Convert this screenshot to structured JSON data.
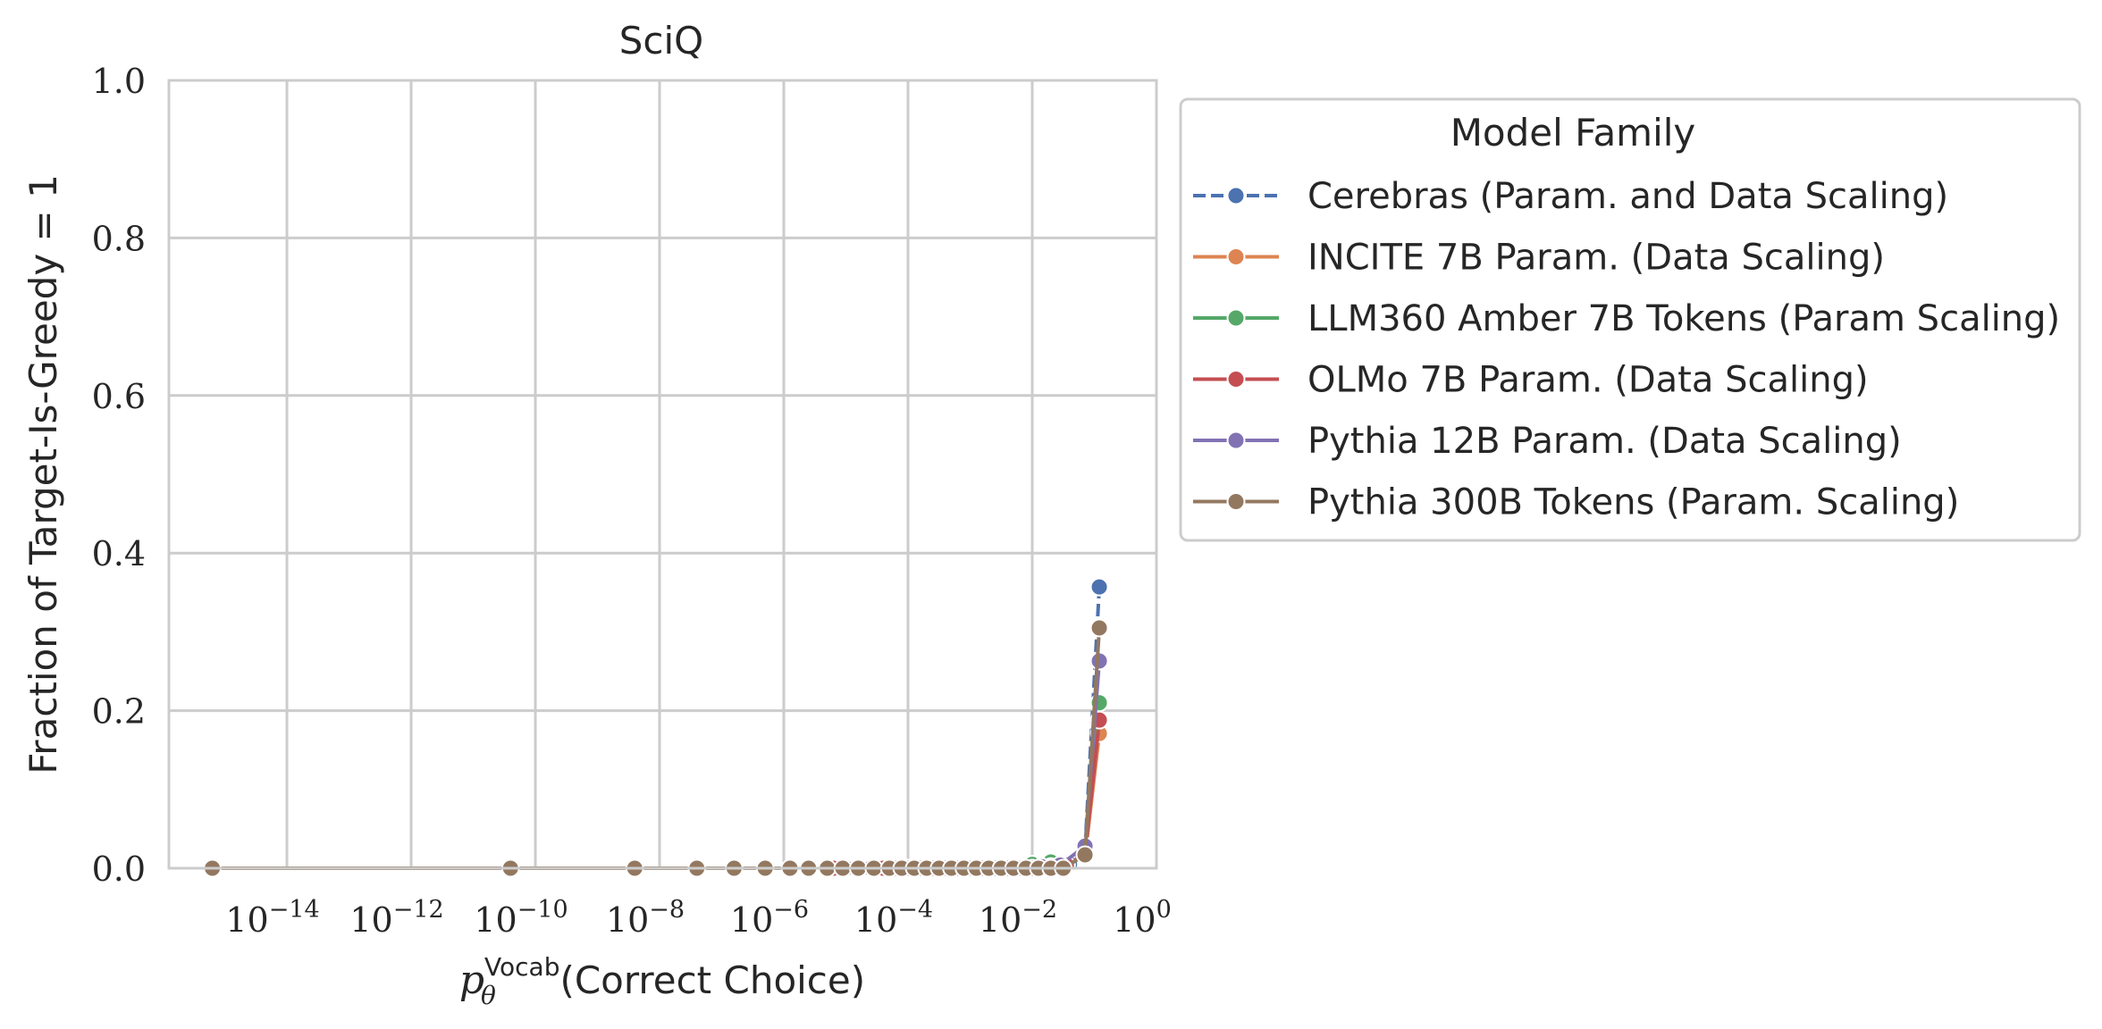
{
  "chart_data": {
    "type": "line",
    "title": "SciQ",
    "xlabel_main": "p",
    "xlabel_sub": "θ",
    "xlabel_sup": "Vocab",
    "xlabel_rest": "(Correct Choice)",
    "ylabel": "Fraction of Target-Is-Greedy = 1",
    "xscale": "log",
    "xlim_exp": [
      -15.9,
      0
    ],
    "ylim": [
      0.0,
      1.0
    ],
    "x_ticks": [
      {
        "exp": -14,
        "base": "10",
        "sup": "−14"
      },
      {
        "exp": -12,
        "base": "10",
        "sup": "−12"
      },
      {
        "exp": -10,
        "base": "10",
        "sup": "−10"
      },
      {
        "exp": -8,
        "base": "10",
        "sup": "−8"
      },
      {
        "exp": -6,
        "base": "10",
        "sup": "−6"
      },
      {
        "exp": -4,
        "base": "10",
        "sup": "−4"
      },
      {
        "exp": -2,
        "base": "10",
        "sup": "−2"
      },
      {
        "exp": 0,
        "base": "10",
        "sup": "0"
      }
    ],
    "y_ticks": [
      {
        "value": 0.0,
        "label": "0.0"
      },
      {
        "value": 0.2,
        "label": "0.2"
      },
      {
        "value": 0.4,
        "label": "0.4"
      },
      {
        "value": 0.6,
        "label": "0.6"
      },
      {
        "value": 0.8,
        "label": "0.8"
      },
      {
        "value": 1.0,
        "label": "1.0"
      }
    ],
    "grid": true,
    "legend": {
      "title": "Model Family",
      "placement": "outside-right-top"
    },
    "series": [
      {
        "name": "Cerebras (Param. and Data Scaling)",
        "color": "#4c72b0",
        "dashed": true,
        "x_exp": [
          -4.2,
          -3.9,
          -3.6,
          -3.3,
          -3.0,
          -2.7,
          -2.4,
          -2.1,
          -1.8,
          -1.6,
          -1.4,
          -1.15,
          -0.92
        ],
        "y": [
          0.0,
          0.0,
          0.0,
          0.0,
          0.0,
          0.0,
          0.0,
          0.0,
          0.002,
          0.003,
          0.005,
          0.025,
          0.357
        ]
      },
      {
        "name": "INCITE 7B Param. (Data Scaling)",
        "color": "#dd8452",
        "dashed": false,
        "x_exp": [
          -5.6,
          -5.3,
          -5.0,
          -4.6,
          -4.2,
          -3.8,
          -3.4,
          -3.0,
          -2.6,
          -2.2,
          -1.8,
          -1.5,
          -1.15,
          -0.92
        ],
        "y": [
          0.0,
          0.0,
          0.0,
          0.0,
          0.0,
          0.0,
          0.0,
          0.0,
          0.0,
          0.0,
          0.002,
          0.004,
          0.015,
          0.171
        ]
      },
      {
        "name": "LLM360 Amber 7B Tokens (Param Scaling)",
        "color": "#55a868",
        "dashed": false,
        "x_exp": [
          -4.8,
          -4.4,
          -4.0,
          -3.6,
          -3.2,
          -2.8,
          -2.4,
          -2.0,
          -1.7,
          -1.45,
          -1.15,
          -0.92
        ],
        "y": [
          0.0,
          0.0,
          0.0,
          0.0,
          0.0,
          0.0,
          0.0,
          0.005,
          0.008,
          0.004,
          0.018,
          0.21
        ]
      },
      {
        "name": "OLMo 7B Param. (Data Scaling)",
        "color": "#c44e52",
        "dashed": false,
        "x_exp": [
          -5.2,
          -4.8,
          -4.4,
          -4.0,
          -3.6,
          -3.2,
          -2.8,
          -2.4,
          -2.0,
          -1.7,
          -1.45,
          -1.15,
          -0.92
        ],
        "y": [
          0.0,
          0.0,
          0.0,
          0.0,
          0.0,
          0.0,
          0.0,
          0.0,
          0.0,
          0.002,
          0.004,
          0.018,
          0.188
        ]
      },
      {
        "name": "Pythia 12B Param. (Data Scaling)",
        "color": "#8172b3",
        "dashed": false,
        "x_exp": [
          -5.0,
          -4.6,
          -4.2,
          -3.8,
          -3.4,
          -3.0,
          -2.6,
          -2.2,
          -1.85,
          -1.55,
          -1.15,
          -0.92
        ],
        "y": [
          0.0,
          0.0,
          0.0,
          0.0,
          0.0,
          0.0,
          0.0,
          0.0,
          0.002,
          0.004,
          0.028,
          0.263
        ]
      },
      {
        "name": "Pythia 300B Tokens (Param. Scaling)",
        "color": "#937860",
        "dashed": false,
        "x_exp": [
          -15.2,
          -10.4,
          -8.4,
          -7.4,
          -6.8,
          -6.3,
          -5.9,
          -5.6,
          -5.3,
          -5.05,
          -4.8,
          -4.55,
          -4.3,
          -4.1,
          -3.9,
          -3.7,
          -3.5,
          -3.3,
          -3.1,
          -2.9,
          -2.7,
          -2.5,
          -2.3,
          -2.1,
          -1.9,
          -1.7,
          -1.5,
          -1.15,
          -0.92
        ],
        "y": [
          0.0,
          0.0,
          0.0,
          0.0,
          0.0,
          0.0,
          0.0,
          0.0,
          0.0,
          0.0,
          0.0,
          0.0,
          0.0,
          0.0,
          0.0,
          0.0,
          0.0,
          0.0,
          0.0,
          0.0,
          0.0,
          0.0,
          0.0,
          0.0,
          0.0,
          0.0,
          0.0,
          0.017,
          0.305
        ]
      }
    ]
  }
}
